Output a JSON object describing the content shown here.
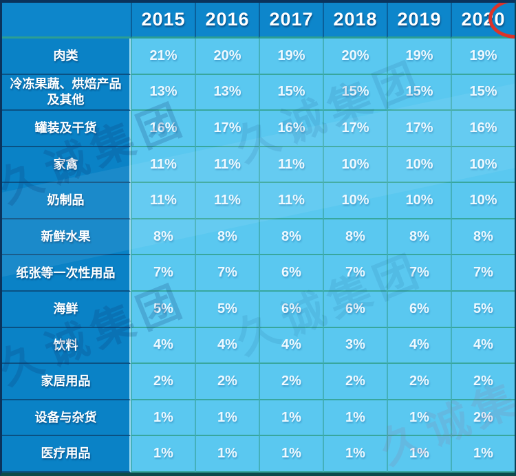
{
  "watermark": {
    "text": "久诚集团"
  },
  "annotation": {
    "red_mark_color": "#dd3328"
  },
  "colors": {
    "header_bg": "#0d86cb",
    "label_bg": "#0a82c6",
    "value_bg": "#5ac8f0",
    "grid_teal": "#38a79e",
    "outer_border": "#0a335c",
    "text": "#ffffff"
  },
  "chart_data": {
    "type": "table",
    "title": "",
    "columns": [
      "",
      "2015",
      "2016",
      "2017",
      "2018",
      "2019",
      "2020"
    ],
    "rows": [
      {
        "label": "肉类",
        "values": [
          "21%",
          "20%",
          "19%",
          "20%",
          "19%",
          "19%"
        ]
      },
      {
        "label": "冷冻果蔬、烘焙产品及其他",
        "values": [
          "13%",
          "13%",
          "15%",
          "15%",
          "15%",
          "15%"
        ]
      },
      {
        "label": "罐装及干货",
        "values": [
          "16%",
          "17%",
          "16%",
          "17%",
          "17%",
          "16%"
        ]
      },
      {
        "label": "家禽",
        "values": [
          "11%",
          "11%",
          "11%",
          "10%",
          "10%",
          "10%"
        ]
      },
      {
        "label": "奶制品",
        "values": [
          "11%",
          "11%",
          "11%",
          "10%",
          "10%",
          "10%"
        ]
      },
      {
        "label": "新鲜水果",
        "values": [
          "8%",
          "8%",
          "8%",
          "8%",
          "8%",
          "8%"
        ]
      },
      {
        "label": "纸张等一次性用品",
        "values": [
          "7%",
          "7%",
          "6%",
          "7%",
          "7%",
          "7%"
        ]
      },
      {
        "label": "海鲜",
        "values": [
          "5%",
          "5%",
          "6%",
          "6%",
          "6%",
          "5%"
        ]
      },
      {
        "label": "饮料",
        "values": [
          "4%",
          "4%",
          "4%",
          "3%",
          "4%",
          "4%"
        ]
      },
      {
        "label": "家居用品",
        "values": [
          "2%",
          "2%",
          "2%",
          "2%",
          "2%",
          "2%"
        ]
      },
      {
        "label": "设备与杂货",
        "values": [
          "1%",
          "1%",
          "1%",
          "1%",
          "1%",
          "2%"
        ]
      },
      {
        "label": "医疗用品",
        "values": [
          "1%",
          "1%",
          "1%",
          "1%",
          "1%",
          "1%"
        ]
      }
    ]
  }
}
